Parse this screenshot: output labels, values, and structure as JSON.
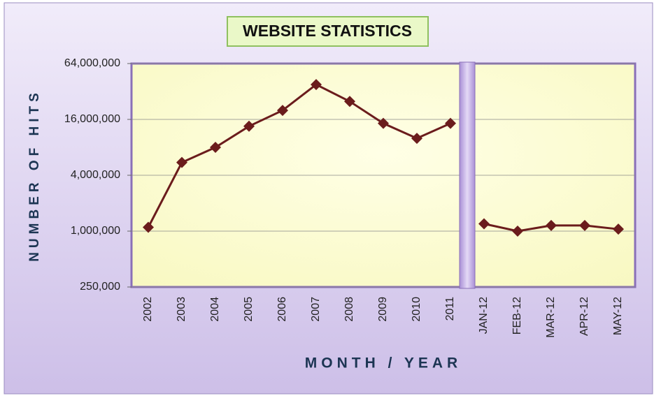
{
  "chart_data": {
    "type": "line",
    "title": "WEBSITE STATISTICS",
    "x_label": "MONTH / YEAR",
    "y_label": "NUMBER OF HITS",
    "categories": [
      "2002",
      "2003",
      "2004",
      "2005",
      "2006",
      "2007",
      "2008",
      "2009",
      "2010",
      "2011",
      null,
      "JAN-12",
      "FEB-12",
      "MAR-12",
      "APR-12",
      "MAY-12"
    ],
    "values": [
      1100000,
      5500000,
      8000000,
      13500000,
      20000000,
      38000000,
      25000000,
      14500000,
      10000000,
      14500000,
      null,
      1200000,
      1000000,
      1150000,
      1150000,
      1050000
    ],
    "color": "#6b1c1c",
    "log_scale": true,
    "ylim": [
      250000,
      64000000
    ],
    "yticks": [
      {
        "value": 250000,
        "label": "250,000"
      },
      {
        "value": 1000000,
        "label": "1,000,000"
      },
      {
        "value": 4000000,
        "label": "4,000,000"
      },
      {
        "value": 16000000,
        "label": "16,000,000"
      },
      {
        "value": 64000000,
        "label": "64,000,000"
      }
    ],
    "grid": true
  }
}
